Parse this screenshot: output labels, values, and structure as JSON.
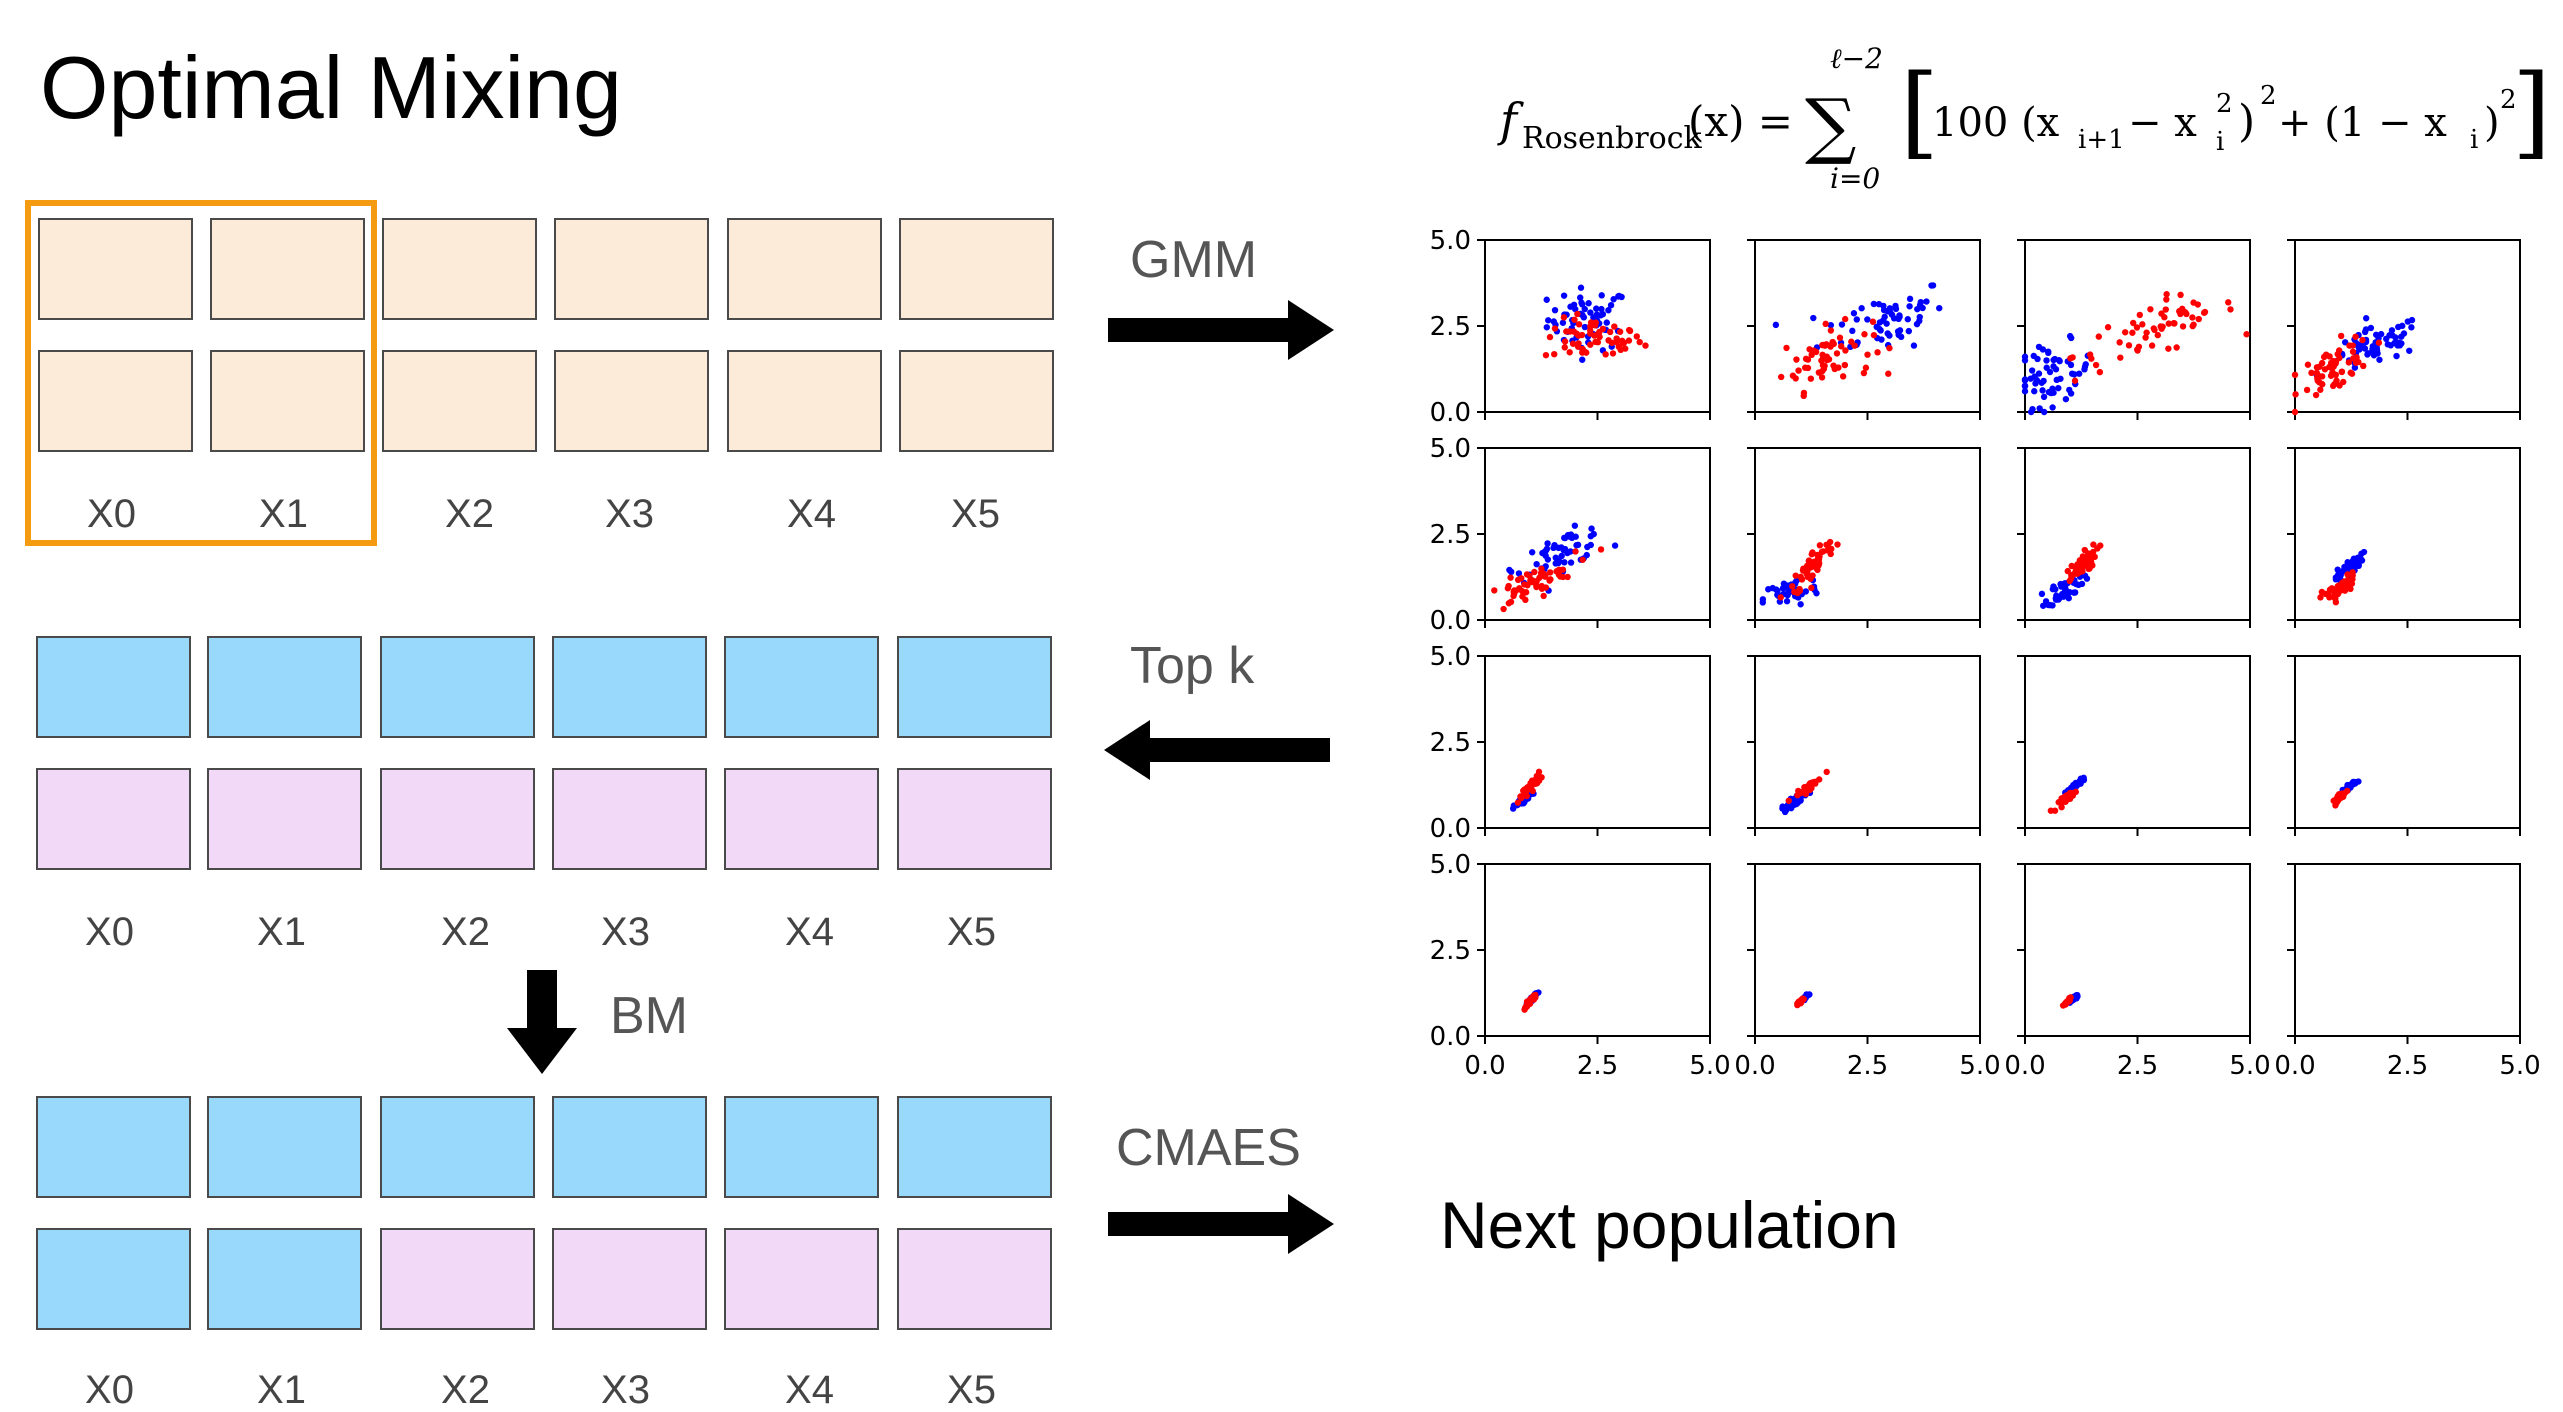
{
  "title": "Optimal Mixing",
  "columns": [
    "X0",
    "X1",
    "X2",
    "X3",
    "X4",
    "X5"
  ],
  "steps": {
    "gmm": "GMM",
    "topk": "Top k",
    "bm": "BM",
    "cmaes": "CMAES",
    "next_population": "Next population"
  },
  "formula": {
    "f_symbol": "f",
    "f_subscript": "Rosenbrock",
    "arg": "(x) =",
    "sum_upper": "ℓ−2",
    "sum_lower": "i=0",
    "body": "100 (x",
    "body_i1": "i+1",
    "body_minus": " − x",
    "body_sq": "2",
    "body_i": "i",
    "body_tail1": ")",
    "body_exp2": "2",
    "body_plus": " + (1 − x",
    "body_tail2": ")",
    "body_exp3": "2"
  },
  "colors": {
    "peach": "#fcebd8",
    "blue": "#99d9fc",
    "pink": "#f2d9f8",
    "highlight": "#f59b12",
    "red_points": "#ff0000",
    "blue_points": "#0000ff"
  },
  "chart_data": {
    "type": "scatter",
    "grid": {
      "rows": 4,
      "cols": 4
    },
    "xlim": [
      0,
      5
    ],
    "ylim": [
      0,
      5
    ],
    "xticks": [
      "0.0",
      "2.5",
      "5.0"
    ],
    "yticks": [
      "0.0",
      "2.5",
      "5.0"
    ],
    "panels": [
      {
        "blue": {
          "cx": 2.3,
          "cy": 2.7,
          "sx": 0.45,
          "sy": 0.45,
          "corr": 0.0,
          "n": 60
        },
        "red": {
          "cx": 2.4,
          "cy": 2.1,
          "sx": 0.55,
          "sy": 0.3,
          "corr": 0.0,
          "n": 60
        }
      },
      {
        "blue": {
          "cx": 2.9,
          "cy": 2.7,
          "sx": 0.7,
          "sy": 0.5,
          "corr": 0.4,
          "n": 60
        },
        "red": {
          "cx": 1.6,
          "cy": 1.6,
          "sx": 0.5,
          "sy": 0.45,
          "corr": 0.3,
          "n": 60
        }
      },
      {
        "blue": {
          "cx": 0.6,
          "cy": 1.1,
          "sx": 0.45,
          "sy": 0.45,
          "corr": 0.2,
          "n": 60
        },
        "red": {
          "cx": 2.9,
          "cy": 2.4,
          "sx": 0.9,
          "sy": 0.55,
          "corr": 0.7,
          "n": 60
        }
      },
      {
        "blue": {
          "cx": 1.8,
          "cy": 1.9,
          "sx": 0.5,
          "sy": 0.35,
          "corr": 0.6,
          "n": 60
        },
        "red": {
          "cx": 0.9,
          "cy": 1.3,
          "sx": 0.4,
          "sy": 0.4,
          "corr": 0.5,
          "n": 60
        }
      },
      {
        "blue": {
          "cx": 1.7,
          "cy": 2.0,
          "sx": 0.5,
          "sy": 0.35,
          "corr": 0.7,
          "n": 55
        },
        "red": {
          "cx": 1.0,
          "cy": 1.0,
          "sx": 0.5,
          "sy": 0.35,
          "corr": 0.8,
          "n": 55
        }
      },
      {
        "blue": {
          "cx": 0.8,
          "cy": 0.8,
          "sx": 0.3,
          "sy": 0.25,
          "corr": 0.4,
          "n": 45
        },
        "red": {
          "cx": 1.3,
          "cy": 1.6,
          "sx": 0.25,
          "sy": 0.4,
          "corr": 0.85,
          "n": 55
        }
      },
      {
        "blue": {
          "cx": 0.9,
          "cy": 0.9,
          "sx": 0.2,
          "sy": 0.2,
          "corr": 0.6,
          "n": 45
        },
        "red": {
          "cx": 1.2,
          "cy": 1.5,
          "sx": 0.2,
          "sy": 0.3,
          "corr": 0.85,
          "n": 50
        }
      },
      {
        "blue": {
          "cx": 1.2,
          "cy": 1.5,
          "sx": 0.15,
          "sy": 0.2,
          "corr": 0.8,
          "n": 40
        },
        "red": {
          "cx": 1.0,
          "cy": 0.9,
          "sx": 0.2,
          "sy": 0.2,
          "corr": 0.7,
          "n": 40
        }
      },
      {
        "blue": {
          "cx": 0.85,
          "cy": 0.8,
          "sx": 0.1,
          "sy": 0.12,
          "corr": 0.9,
          "n": 35
        },
        "red": {
          "cx": 1.0,
          "cy": 1.2,
          "sx": 0.12,
          "sy": 0.18,
          "corr": 0.9,
          "n": 40
        }
      },
      {
        "blue": {
          "cx": 0.9,
          "cy": 0.8,
          "sx": 0.15,
          "sy": 0.15,
          "corr": 0.9,
          "n": 35
        },
        "red": {
          "cx": 1.2,
          "cy": 1.2,
          "sx": 0.15,
          "sy": 0.15,
          "corr": 0.95,
          "n": 40
        }
      },
      {
        "blue": {
          "cx": 1.1,
          "cy": 1.2,
          "sx": 0.12,
          "sy": 0.15,
          "corr": 0.95,
          "n": 35
        },
        "red": {
          "cx": 0.95,
          "cy": 0.9,
          "sx": 0.1,
          "sy": 0.12,
          "corr": 0.9,
          "n": 35
        }
      },
      {
        "blue": {
          "cx": 1.2,
          "cy": 1.2,
          "sx": 0.08,
          "sy": 0.08,
          "corr": 0.9,
          "n": 30
        },
        "red": {
          "cx": 1.0,
          "cy": 0.9,
          "sx": 0.08,
          "sy": 0.1,
          "corr": 0.9,
          "n": 30
        }
      },
      {
        "blue": {
          "cx": 1.05,
          "cy": 1.1,
          "sx": 0.05,
          "sy": 0.07,
          "corr": 0.9,
          "n": 30
        },
        "red": {
          "cx": 1.0,
          "cy": 1.0,
          "sx": 0.06,
          "sy": 0.1,
          "corr": 0.9,
          "n": 30
        }
      },
      {
        "blue": {
          "cx": 1.1,
          "cy": 1.1,
          "sx": 0.04,
          "sy": 0.05,
          "corr": 0.9,
          "n": 25
        },
        "red": {
          "cx": 1.0,
          "cy": 1.0,
          "sx": 0.05,
          "sy": 0.06,
          "corr": 0.9,
          "n": 25
        }
      },
      {
        "blue": {
          "cx": 1.1,
          "cy": 1.1,
          "sx": 0.04,
          "sy": 0.05,
          "corr": 0.9,
          "n": 25
        },
        "red": {
          "cx": 0.95,
          "cy": 1.0,
          "sx": 0.04,
          "sy": 0.05,
          "corr": 0.9,
          "n": 25
        }
      },
      {
        "blue": {
          "cx": 0,
          "cy": 0,
          "sx": 0,
          "sy": 0,
          "corr": 0,
          "n": 0
        },
        "red": {
          "cx": 0,
          "cy": 0,
          "sx": 0,
          "sy": 0,
          "corr": 0,
          "n": 0
        }
      }
    ]
  }
}
